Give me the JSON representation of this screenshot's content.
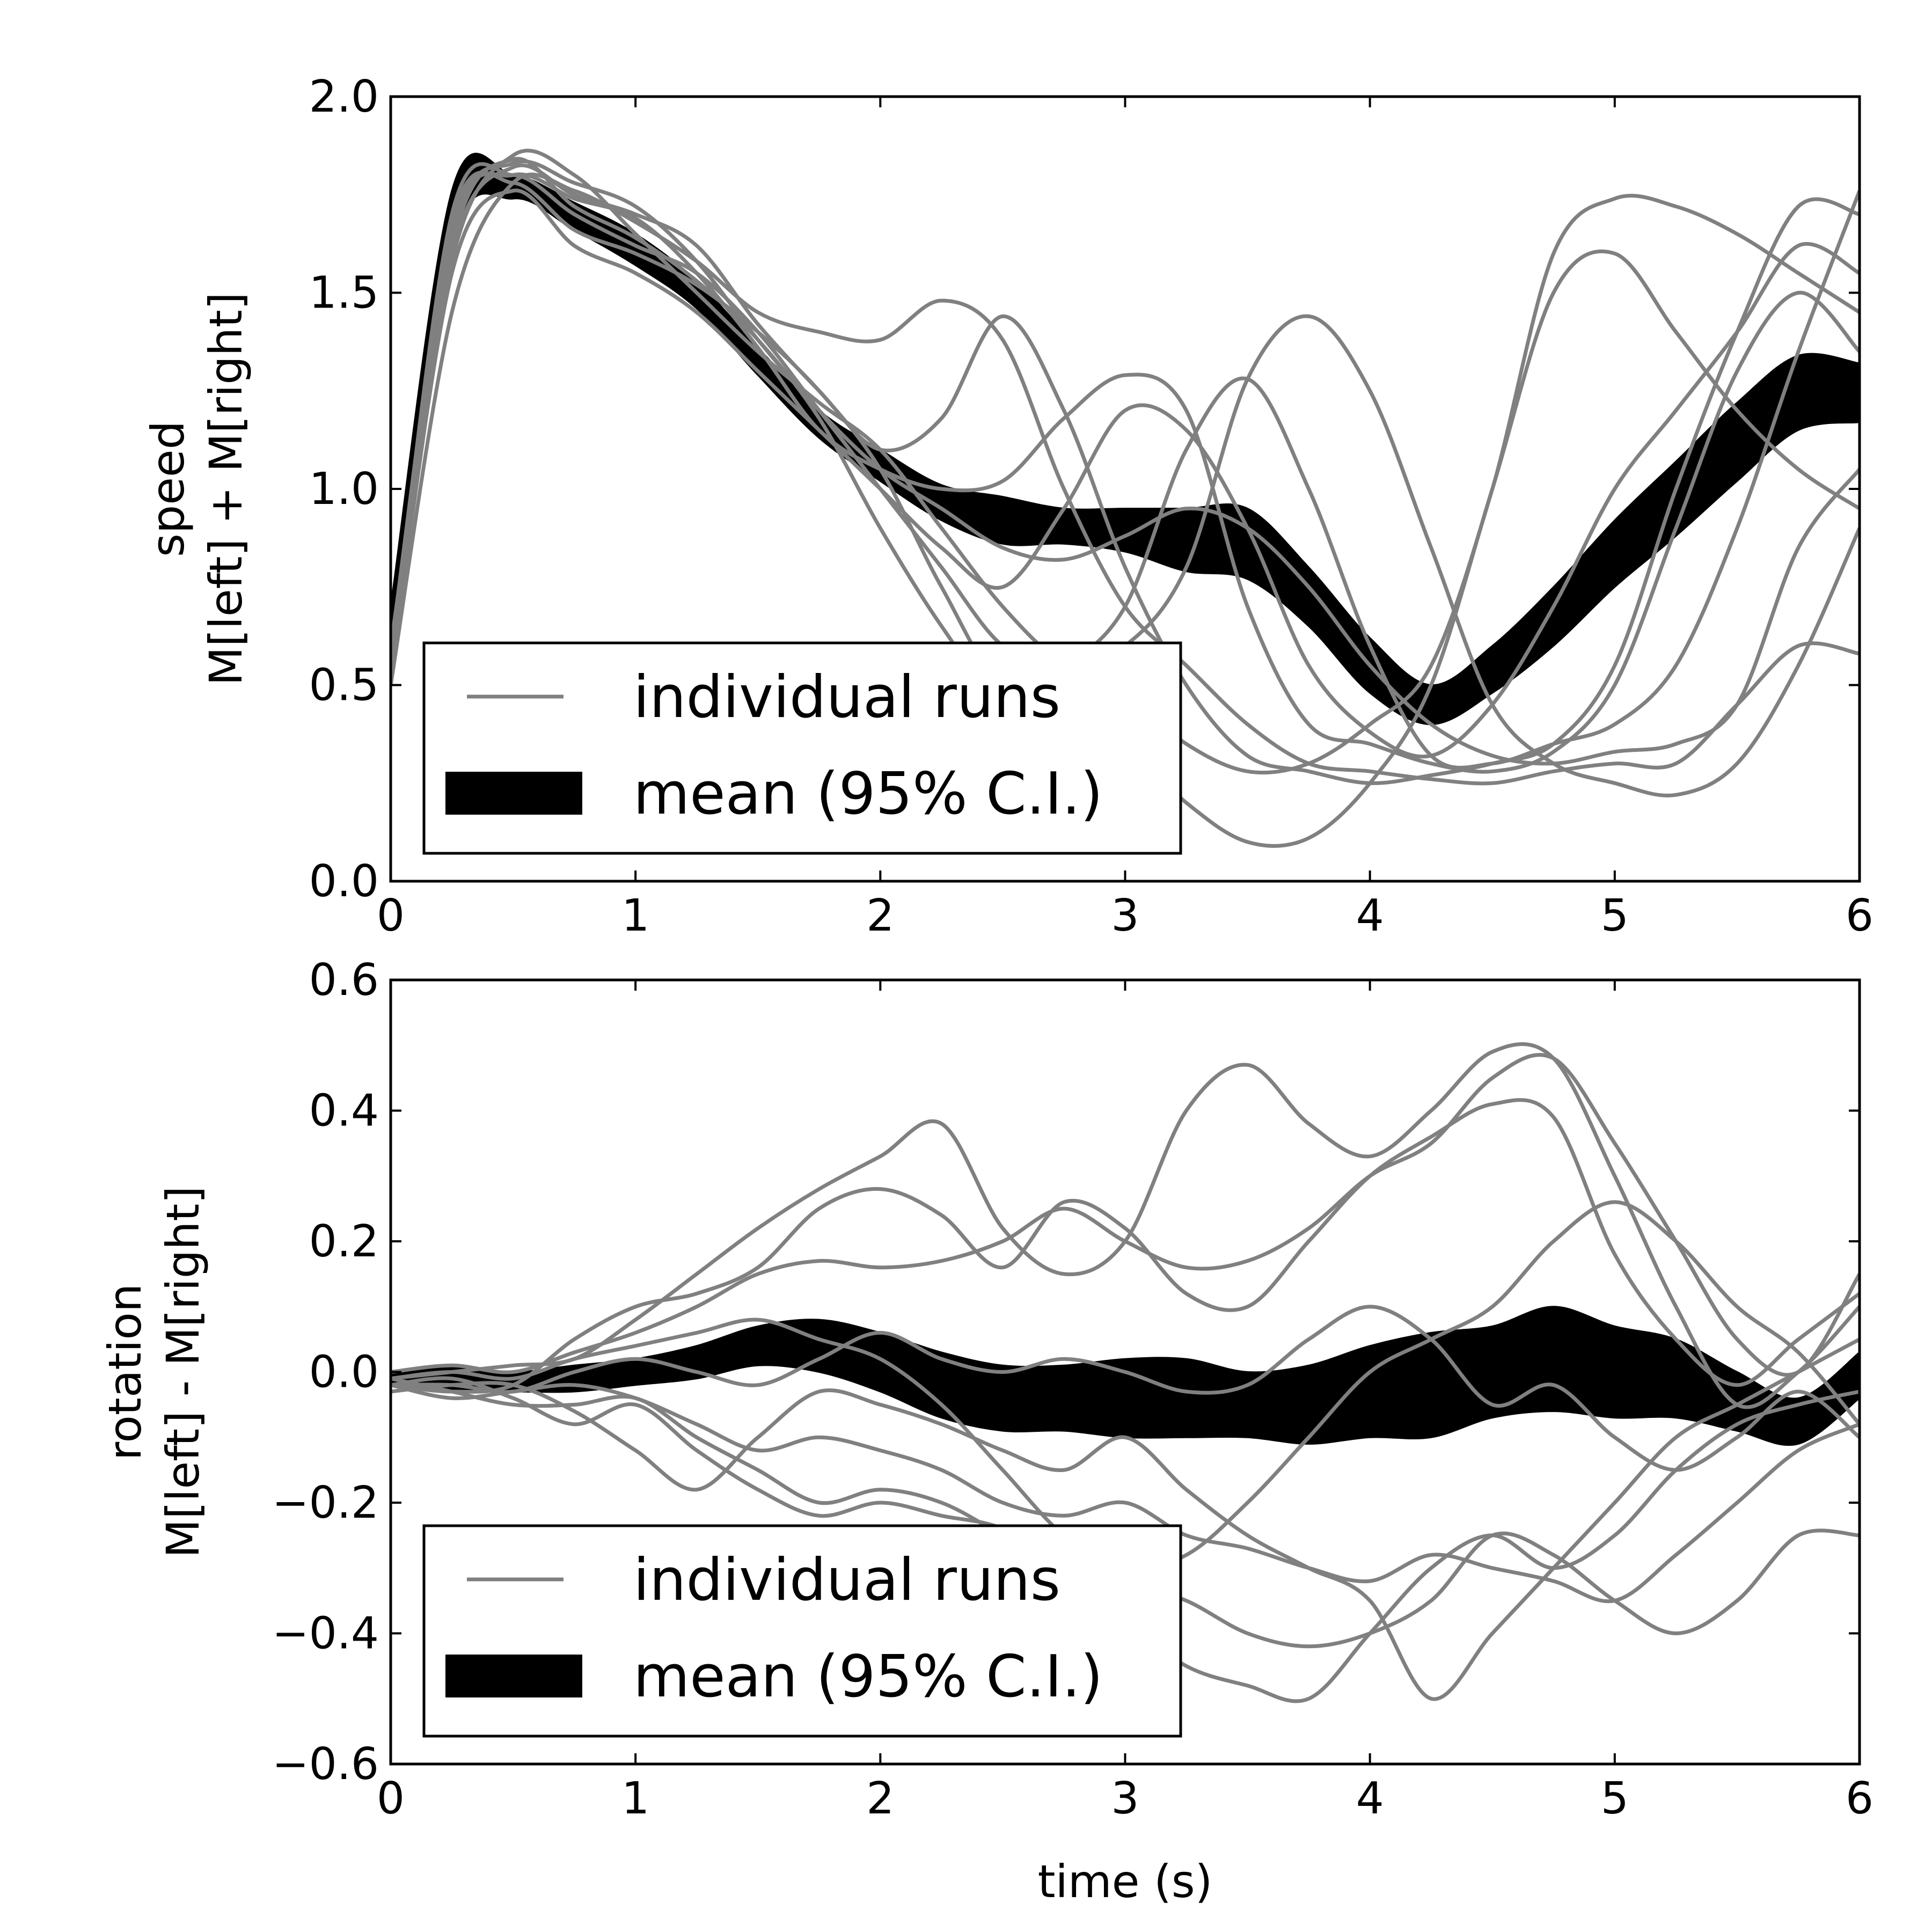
{
  "chart_data": [
    {
      "type": "line",
      "ylabel_lines": [
        "speed",
        "M[left] + M[right]"
      ],
      "xlabel": "",
      "xlim": [
        0,
        6
      ],
      "ylim": [
        0,
        2
      ],
      "xticks": [
        "0",
        "1",
        "2",
        "3",
        "4",
        "5",
        "6"
      ],
      "yticks": [
        "0.0",
        "0.5",
        "1.0",
        "1.5",
        "2.0"
      ],
      "grid": false,
      "legend": {
        "placement": "lower-left",
        "entries": [
          {
            "label": "individual runs",
            "style": "line",
            "color": "#808080"
          },
          {
            "label": "mean (95% C.I.)",
            "style": "band",
            "color": "#000000"
          }
        ]
      },
      "colors": {
        "runs": "#808080",
        "mean_band": "#000000"
      },
      "x": [
        0,
        0.25,
        0.5,
        0.75,
        1,
        1.25,
        1.5,
        1.75,
        2,
        2.25,
        2.5,
        2.75,
        3,
        3.25,
        3.5,
        3.75,
        4,
        4.25,
        4.5,
        4.75,
        5,
        5.25,
        5.5,
        5.75,
        6
      ],
      "mean_band": {
        "name": "mean (95% C.I.)",
        "lower": [
          0.55,
          1.62,
          1.74,
          1.66,
          1.57,
          1.46,
          1.29,
          1.13,
          1.02,
          0.92,
          0.86,
          0.86,
          0.84,
          0.79,
          0.77,
          0.65,
          0.48,
          0.4,
          0.48,
          0.6,
          0.75,
          0.88,
          1.02,
          1.15,
          1.17
        ],
        "upper": [
          0.7,
          1.76,
          1.8,
          1.73,
          1.65,
          1.53,
          1.36,
          1.2,
          1.1,
          1.01,
          0.98,
          0.95,
          0.95,
          0.95,
          0.95,
          0.8,
          0.62,
          0.5,
          0.6,
          0.75,
          0.92,
          1.07,
          1.22,
          1.34,
          1.32
        ]
      },
      "series": [
        {
          "values": [
            0.5,
            1.45,
            1.78,
            1.76,
            1.68,
            1.58,
            1.45,
            1.4,
            1.38,
            1.48,
            1.38,
            1.0,
            0.7,
            0.55,
            0.4,
            0.3,
            0.28,
            0.26,
            0.25,
            0.28,
            0.3,
            0.3,
            0.45,
            0.6,
            0.58
          ]
        },
        {
          "values": [
            0.6,
            1.6,
            1.82,
            1.75,
            1.7,
            1.62,
            1.42,
            1.25,
            1.1,
            1.18,
            1.44,
            1.2,
            0.8,
            0.5,
            0.32,
            0.28,
            0.25,
            0.27,
            0.3,
            0.35,
            0.55,
            1.0,
            1.4,
            1.72,
            1.7
          ]
        },
        {
          "values": [
            0.55,
            1.7,
            1.8,
            1.7,
            1.62,
            1.55,
            1.4,
            1.2,
            1.0,
            0.8,
            0.6,
            0.55,
            0.6,
            0.8,
            1.28,
            1.44,
            1.25,
            0.85,
            0.45,
            0.3,
            0.25,
            0.22,
            0.3,
            0.55,
            0.9
          ]
        },
        {
          "values": [
            0.58,
            1.65,
            1.83,
            1.78,
            1.72,
            1.58,
            1.38,
            1.2,
            1.05,
            0.95,
            0.85,
            0.82,
            0.88,
            0.95,
            0.9,
            0.75,
            0.55,
            0.4,
            0.32,
            0.3,
            0.33,
            0.35,
            0.45,
            0.85,
            1.05
          ]
        },
        {
          "values": [
            0.56,
            1.58,
            1.85,
            1.8,
            1.65,
            1.5,
            1.35,
            1.22,
            1.1,
            0.9,
            0.7,
            0.55,
            0.48,
            0.35,
            0.28,
            0.3,
            0.4,
            0.55,
            1.0,
            1.6,
            1.74,
            1.72,
            1.65,
            1.55,
            1.45
          ]
        },
        {
          "values": [
            0.57,
            1.68,
            1.78,
            1.66,
            1.6,
            1.52,
            1.4,
            1.25,
            1.05,
            0.75,
            0.5,
            0.55,
            0.7,
            1.1,
            1.28,
            1.0,
            0.6,
            0.32,
            0.3,
            0.35,
            0.4,
            0.55,
            0.9,
            1.35,
            1.76
          ]
        },
        {
          "values": [
            0.54,
            1.62,
            1.84,
            1.72,
            1.64,
            1.53,
            1.38,
            1.18,
            0.9,
            0.65,
            0.45,
            0.4,
            0.35,
            0.2,
            0.1,
            0.11,
            0.25,
            0.5,
            1.0,
            1.5,
            1.6,
            1.4,
            1.2,
            1.05,
            0.95
          ]
        },
        {
          "values": [
            0.59,
            1.66,
            1.8,
            1.74,
            1.69,
            1.55,
            1.36,
            1.15,
            1.05,
            1.0,
            1.02,
            1.18,
            1.29,
            1.2,
            0.7,
            0.4,
            0.35,
            0.3,
            0.28,
            0.33,
            0.5,
            0.9,
            1.3,
            1.5,
            1.35
          ]
        },
        {
          "values": [
            0.53,
            1.55,
            1.76,
            1.62,
            1.55,
            1.45,
            1.3,
            1.15,
            1.0,
            0.85,
            0.75,
            0.95,
            1.2,
            1.15,
            0.9,
            0.55,
            0.38,
            0.32,
            0.45,
            0.7,
            1.0,
            1.2,
            1.4,
            1.62,
            1.55
          ]
        }
      ]
    },
    {
      "type": "line",
      "ylabel_lines": [
        "rotation",
        "M[left] - M[right]"
      ],
      "xlabel": "time (s)",
      "xlim": [
        0,
        6
      ],
      "ylim": [
        -0.6,
        0.6
      ],
      "xticks": [
        "0",
        "1",
        "2",
        "3",
        "4",
        "5",
        "6"
      ],
      "yticks": [
        "−0.6",
        "−0.4",
        "−0.2",
        "0.0",
        "0.2",
        "0.4",
        "0.6"
      ],
      "grid": false,
      "legend": {
        "placement": "lower-left",
        "entries": [
          {
            "label": "individual runs",
            "style": "line",
            "color": "#808080"
          },
          {
            "label": "mean (95% C.I.)",
            "style": "band",
            "color": "#000000"
          }
        ]
      },
      "colors": {
        "runs": "#808080",
        "mean_band": "#000000"
      },
      "x": [
        0,
        0.25,
        0.5,
        0.75,
        1,
        1.25,
        1.5,
        1.75,
        2,
        2.25,
        2.5,
        2.75,
        3,
        3.25,
        3.5,
        3.75,
        4,
        4.25,
        4.5,
        4.75,
        5,
        5.25,
        5.5,
        5.75,
        6
      ],
      "mean_band": {
        "name": "mean (95% C.I.)",
        "lower": [
          -0.02,
          -0.03,
          -0.03,
          -0.03,
          -0.02,
          -0.01,
          0.01,
          0.0,
          -0.03,
          -0.07,
          -0.09,
          -0.09,
          -0.1,
          -0.1,
          -0.1,
          -0.11,
          -0.1,
          -0.1,
          -0.07,
          -0.06,
          -0.07,
          -0.07,
          -0.09,
          -0.11,
          -0.04
        ],
        "upper": [
          0.0,
          0.01,
          0.0,
          0.01,
          0.02,
          0.04,
          0.07,
          0.08,
          0.06,
          0.03,
          0.01,
          0.01,
          0.02,
          0.02,
          0.0,
          0.01,
          0.04,
          0.06,
          0.07,
          0.1,
          0.07,
          0.05,
          0.0,
          -0.04,
          0.03
        ]
      },
      "series": [
        {
          "values": [
            -0.01,
            0.0,
            0.01,
            0.02,
            0.08,
            0.15,
            0.22,
            0.28,
            0.33,
            0.38,
            0.22,
            0.15,
            0.2,
            0.4,
            0.47,
            0.38,
            0.33,
            0.4,
            0.49,
            0.48,
            0.3,
            0.1,
            -0.05,
            0.0,
            0.1
          ]
        },
        {
          "values": [
            -0.02,
            -0.03,
            -0.02,
            0.05,
            0.1,
            0.12,
            0.16,
            0.25,
            0.28,
            0.24,
            0.16,
            0.26,
            0.22,
            0.12,
            0.1,
            0.2,
            0.3,
            0.36,
            0.41,
            0.39,
            0.18,
            0.05,
            -0.02,
            0.05,
            0.12
          ]
        },
        {
          "values": [
            0.0,
            0.01,
            0.0,
            0.03,
            0.06,
            0.1,
            0.15,
            0.17,
            0.16,
            0.17,
            0.2,
            0.25,
            0.2,
            0.16,
            0.17,
            0.22,
            0.3,
            0.35,
            0.45,
            0.48,
            0.35,
            0.2,
            0.05,
            0.0,
            0.15
          ]
        },
        {
          "values": [
            -0.01,
            0.0,
            -0.01,
            0.02,
            0.04,
            0.06,
            0.08,
            0.05,
            0.02,
            -0.05,
            -0.15,
            -0.25,
            -0.3,
            -0.28,
            -0.2,
            -0.1,
            0.0,
            0.05,
            0.1,
            0.2,
            0.26,
            0.2,
            0.1,
            0.03,
            -0.08
          ]
        },
        {
          "values": [
            -0.02,
            -0.02,
            -0.03,
            0.0,
            0.02,
            0.0,
            -0.02,
            0.02,
            0.06,
            0.02,
            0.0,
            0.02,
            0.0,
            -0.03,
            -0.02,
            0.05,
            0.1,
            0.05,
            -0.05,
            -0.02,
            -0.1,
            -0.15,
            -0.1,
            -0.03,
            -0.1
          ]
        },
        {
          "values": [
            -0.01,
            -0.03,
            -0.05,
            -0.05,
            -0.04,
            -0.1,
            -0.15,
            -0.2,
            -0.18,
            -0.2,
            -0.25,
            -0.3,
            -0.32,
            -0.35,
            -0.4,
            -0.42,
            -0.4,
            -0.35,
            -0.25,
            -0.28,
            -0.35,
            -0.4,
            -0.35,
            -0.25,
            -0.25
          ]
        },
        {
          "values": [
            -0.02,
            -0.01,
            -0.04,
            -0.08,
            -0.05,
            -0.12,
            -0.18,
            -0.22,
            -0.2,
            -0.22,
            -0.24,
            -0.3,
            -0.38,
            -0.45,
            -0.48,
            -0.5,
            -0.4,
            -0.3,
            -0.25,
            -0.3,
            -0.25,
            -0.15,
            -0.08,
            -0.05,
            -0.03
          ]
        },
        {
          "values": [
            -0.03,
            -0.02,
            -0.02,
            -0.06,
            -0.12,
            -0.18,
            -0.1,
            -0.03,
            -0.05,
            -0.08,
            -0.12,
            -0.15,
            -0.1,
            -0.18,
            -0.25,
            -0.3,
            -0.35,
            -0.5,
            -0.4,
            -0.3,
            -0.2,
            -0.1,
            -0.05,
            0.0,
            0.05
          ]
        },
        {
          "values": [
            -0.02,
            -0.04,
            -0.03,
            -0.02,
            -0.04,
            -0.08,
            -0.12,
            -0.1,
            -0.12,
            -0.15,
            -0.2,
            -0.22,
            -0.2,
            -0.25,
            -0.27,
            -0.3,
            -0.32,
            -0.28,
            -0.3,
            -0.32,
            -0.35,
            -0.28,
            -0.2,
            -0.12,
            -0.08
          ]
        }
      ]
    }
  ]
}
